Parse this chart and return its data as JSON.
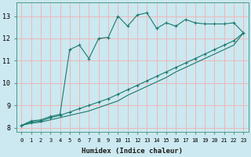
{
  "title": "",
  "xlabel": "Humidex (Indice chaleur)",
  "bg_color": "#cce8f0",
  "grid_color": "#f0b0b0",
  "line_color": "#1a7a6e",
  "xlim": [
    -0.5,
    23.5
  ],
  "ylim": [
    7.8,
    13.6
  ],
  "xticks": [
    0,
    1,
    2,
    3,
    4,
    5,
    6,
    7,
    8,
    9,
    10,
    11,
    12,
    13,
    14,
    15,
    16,
    17,
    18,
    19,
    20,
    21,
    22,
    23
  ],
  "yticks": [
    8,
    9,
    10,
    11,
    12,
    13
  ],
  "curve1_x": [
    0,
    1,
    2,
    3,
    4,
    5,
    6,
    7,
    8,
    9,
    10,
    11,
    12,
    13,
    14,
    15,
    16,
    17,
    18,
    19,
    20,
    21,
    22,
    23
  ],
  "curve1_y": [
    8.1,
    8.3,
    8.35,
    8.5,
    8.6,
    11.5,
    11.7,
    11.1,
    12.0,
    12.05,
    13.0,
    12.55,
    13.05,
    13.15,
    12.45,
    12.7,
    12.55,
    12.85,
    12.7,
    12.65,
    12.65,
    12.65,
    12.7,
    12.25
  ],
  "curve2_x": [
    0,
    1,
    2,
    3,
    4,
    5,
    6,
    7,
    8,
    9,
    10,
    11,
    12,
    13,
    14,
    15,
    16,
    17,
    18,
    19,
    20,
    21,
    22,
    23
  ],
  "curve2_y": [
    8.1,
    8.25,
    8.3,
    8.45,
    8.55,
    8.7,
    8.85,
    9.0,
    9.15,
    9.3,
    9.5,
    9.7,
    9.9,
    10.1,
    10.3,
    10.5,
    10.7,
    10.9,
    11.1,
    11.3,
    11.5,
    11.7,
    11.9,
    12.25
  ],
  "curve3_x": [
    0,
    1,
    2,
    3,
    4,
    5,
    6,
    7,
    8,
    9,
    10,
    11,
    12,
    13,
    14,
    15,
    16,
    17,
    18,
    19,
    20,
    21,
    22,
    23
  ],
  "curve3_y": [
    8.1,
    8.2,
    8.25,
    8.35,
    8.45,
    8.55,
    8.65,
    8.75,
    8.9,
    9.05,
    9.2,
    9.45,
    9.65,
    9.85,
    10.05,
    10.25,
    10.5,
    10.7,
    10.9,
    11.1,
    11.3,
    11.5,
    11.7,
    12.25
  ]
}
